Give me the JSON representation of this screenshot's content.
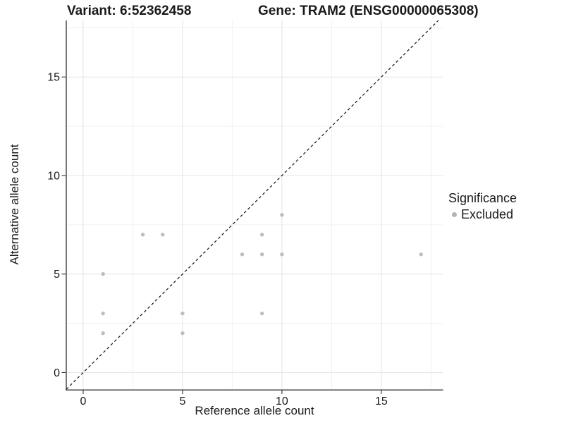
{
  "header": {
    "variant_title": "Variant: 6:52362458",
    "gene_title": "Gene: TRAM2 (ENSG00000065308)"
  },
  "chart_data": {
    "type": "scatter",
    "xlabel": "Reference allele count",
    "ylabel": "Alternative allele count",
    "xlim": [
      -0.85,
      18.09
    ],
    "ylim": [
      -0.86,
      17.87
    ],
    "x_ticks": [
      0,
      5,
      10,
      15
    ],
    "y_ticks": [
      0,
      5,
      10,
      15
    ],
    "x_minor_ticks": [
      2.5,
      7.5,
      12.5,
      17.5
    ],
    "y_minor_ticks": [
      2.5,
      7.5,
      12.5,
      17.5
    ],
    "grid": "major+minor",
    "identity_line": {
      "type": "y=x",
      "style": "dashed",
      "color": "#111111"
    },
    "series": [
      {
        "name": "Excluded",
        "color": "#bdbdbd",
        "marker": "circle",
        "points": [
          [
            1,
            2
          ],
          [
            1,
            3
          ],
          [
            1,
            5
          ],
          [
            3,
            7
          ],
          [
            4,
            7
          ],
          [
            5,
            2
          ],
          [
            5,
            3
          ],
          [
            8,
            6
          ],
          [
            9,
            3
          ],
          [
            9,
            6
          ],
          [
            9,
            7
          ],
          [
            10,
            6
          ],
          [
            10,
            8
          ],
          [
            17,
            6
          ]
        ]
      }
    ],
    "legend": {
      "title": "Significance",
      "position": "right",
      "items": [
        {
          "label": "Excluded",
          "color": "#b4b4b4"
        }
      ]
    },
    "colors": {
      "grid_major": "#e4e4e4",
      "grid_minor": "#f1f1f1",
      "axis": "#2f2f2f",
      "text": "#1a1a1a",
      "background": "#ffffff"
    }
  }
}
